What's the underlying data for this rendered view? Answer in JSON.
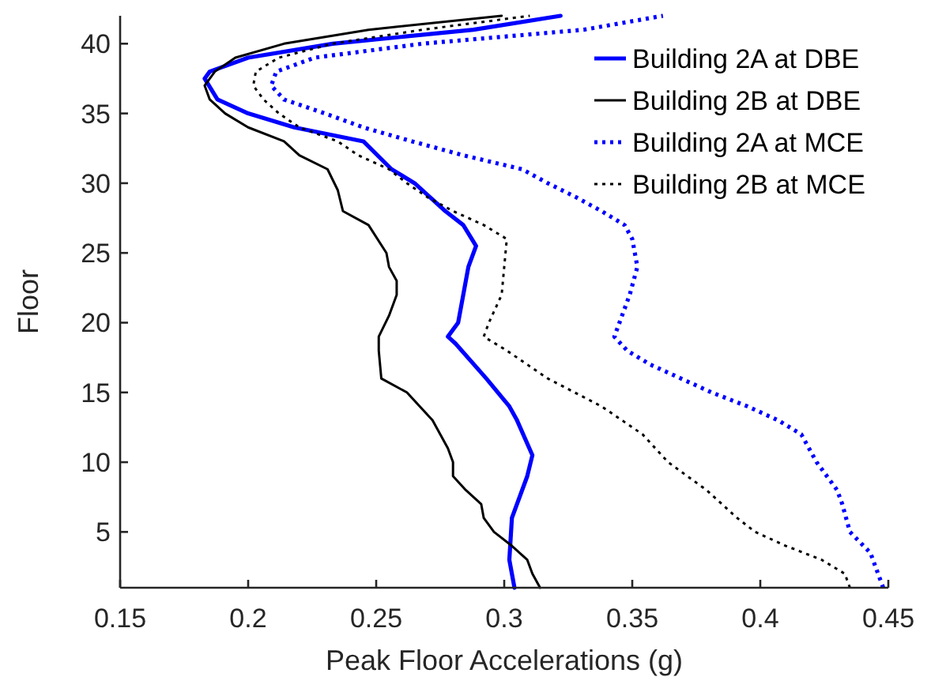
{
  "chart_data": {
    "type": "line",
    "xlabel": "Peak Floor Accelerations (g)",
    "ylabel": "Floor",
    "xlim": [
      0.15,
      0.45
    ],
    "ylim": [
      1,
      42
    ],
    "xticks": [
      0.15,
      0.2,
      0.25,
      0.3,
      0.35,
      0.4,
      0.45
    ],
    "yticks": [
      5,
      10,
      15,
      20,
      25,
      30,
      35,
      40
    ],
    "grid": false,
    "legend": "top right",
    "marker": "none",
    "series": [
      {
        "name": "Building 2A at DBE",
        "color": "#0000ff",
        "line_style": "solid",
        "x": [
          0.304,
          0.302,
          0.303,
          0.309,
          0.311,
          0.305,
          0.302,
          0.293,
          0.281,
          0.278,
          0.282,
          0.284,
          0.286,
          0.289,
          0.284,
          0.277,
          0.271,
          0.265,
          0.256,
          0.245,
          0.218,
          0.2,
          0.188,
          0.183,
          0.185,
          0.2,
          0.233,
          0.288,
          0.322
        ],
        "values": [
          1,
          3,
          6,
          9,
          10.5,
          13,
          14,
          16,
          18.5,
          19,
          20,
          22,
          24,
          25.5,
          27,
          28,
          29,
          30,
          31,
          33,
          34,
          35,
          36,
          37.5,
          38,
          39,
          40,
          41,
          42
        ]
      },
      {
        "name": "Building 2B at DBE",
        "color": "#000000",
        "line_style": "solid",
        "x": [
          0.314,
          0.311,
          0.309,
          0.303,
          0.296,
          0.292,
          0.291,
          0.285,
          0.28,
          0.28,
          0.278,
          0.272,
          0.262,
          0.252,
          0.251,
          0.251,
          0.255,
          0.258,
          0.258,
          0.255,
          0.254,
          0.247,
          0.237,
          0.235,
          0.231,
          0.22,
          0.214,
          0.2,
          0.191,
          0.185,
          0.183,
          0.187,
          0.195,
          0.214,
          0.247,
          0.299
        ],
        "values": [
          1,
          2,
          3,
          4,
          5,
          6,
          7,
          8,
          9,
          10,
          11,
          13,
          15,
          16,
          18,
          19,
          20.5,
          22,
          23,
          24,
          25,
          27,
          28,
          29.5,
          31,
          32,
          33,
          34,
          35,
          36,
          37,
          38,
          39,
          40,
          41,
          42
        ]
      },
      {
        "name": "Building 2A at MCE",
        "color": "#0000ff",
        "line_style": "dotted",
        "x": [
          0.448,
          0.446,
          0.443,
          0.435,
          0.432,
          0.43,
          0.422,
          0.416,
          0.407,
          0.395,
          0.381,
          0.369,
          0.357,
          0.348,
          0.343,
          0.345,
          0.349,
          0.352,
          0.35,
          0.347,
          0.338,
          0.328,
          0.317,
          0.307,
          0.284,
          0.264,
          0.245,
          0.23,
          0.214,
          0.209,
          0.211,
          0.226,
          0.268,
          0.331,
          0.362
        ],
        "values": [
          1,
          2,
          3.5,
          5,
          7,
          8,
          10,
          12,
          13,
          14,
          15,
          16,
          17,
          18,
          19,
          20,
          22,
          24,
          26,
          27,
          28,
          29,
          30,
          31,
          32,
          33,
          34,
          35,
          36,
          37,
          38,
          39,
          40,
          41,
          42
        ]
      },
      {
        "name": "Building 2B at MCE",
        "color": "#000000",
        "line_style": "dotted",
        "x": [
          0.435,
          0.433,
          0.424,
          0.41,
          0.398,
          0.391,
          0.379,
          0.364,
          0.354,
          0.338,
          0.317,
          0.309,
          0.301,
          0.292,
          0.294,
          0.299,
          0.3,
          0.301,
          0.292,
          0.28,
          0.27,
          0.262,
          0.255,
          0.243,
          0.235,
          0.22,
          0.212,
          0.206,
          0.202,
          0.203,
          0.212,
          0.233,
          0.268,
          0.31
        ],
        "values": [
          1,
          2,
          3,
          4,
          5,
          6,
          8,
          10,
          12,
          14,
          16,
          17,
          18,
          19,
          20,
          22,
          24,
          26,
          27,
          28,
          29,
          30,
          31,
          32,
          33,
          34,
          35,
          36,
          37,
          38,
          39,
          40,
          41,
          42
        ]
      }
    ]
  }
}
